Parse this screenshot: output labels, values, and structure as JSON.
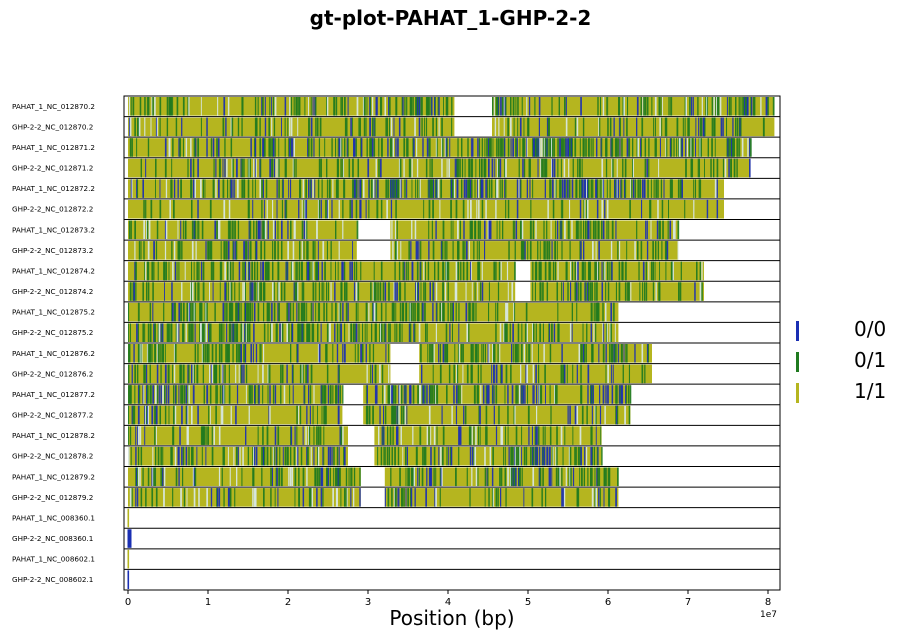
{
  "chart_data": {
    "type": "genotype-track",
    "title": "gt-plot-PAHAT_1-GHP-2-2",
    "xlabel": "Position (bp)",
    "x_offset_label": "1e7",
    "xlim": [
      -0.05,
      8.15
    ],
    "x_ticks": [
      {
        "value": 0,
        "label": "0"
      },
      {
        "value": 1,
        "label": "1"
      },
      {
        "value": 2,
        "label": "2"
      },
      {
        "value": 3,
        "label": "3"
      },
      {
        "value": 4,
        "label": "4"
      },
      {
        "value": 5,
        "label": "5"
      },
      {
        "value": 6,
        "label": "6"
      },
      {
        "value": 7,
        "label": "7"
      },
      {
        "value": 8,
        "label": "8"
      }
    ],
    "legend": [
      {
        "label": "0/0",
        "color": "#1a2fb3"
      },
      {
        "label": "0/1",
        "color": "#1f7a1f"
      },
      {
        "label": "1/1",
        "color": "#b5b51f"
      }
    ],
    "tracks": [
      {
        "label": "PAHAT_1_NC_012870.2",
        "end": 8.08,
        "gaps": [
          [
            4.08,
            4.55
          ]
        ],
        "seed": 11,
        "het": 0.3,
        "ref": 0.12
      },
      {
        "label": "GHP-2-2_NC_012870.2",
        "end": 8.08,
        "gaps": [
          [
            4.08,
            4.55
          ]
        ],
        "seed": 12,
        "het": 0.22,
        "ref": 0.08
      },
      {
        "label": "PAHAT_1_NC_012871.2",
        "end": 7.78,
        "gaps": [],
        "seed": 13,
        "het": 0.32,
        "ref": 0.2
      },
      {
        "label": "GHP-2-2_NC_012871.2",
        "end": 7.78,
        "gaps": [],
        "seed": 14,
        "het": 0.2,
        "ref": 0.08
      },
      {
        "label": "PAHAT_1_NC_012872.2",
        "end": 7.45,
        "gaps": [],
        "seed": 15,
        "het": 0.32,
        "ref": 0.16
      },
      {
        "label": "GHP-2-2_NC_012872.2",
        "end": 7.45,
        "gaps": [],
        "seed": 16,
        "het": 0.14,
        "ref": 0.06
      },
      {
        "label": "PAHAT_1_NC_012873.2",
        "end": 6.88,
        "gaps": [
          [
            2.86,
            3.28
          ]
        ],
        "seed": 17,
        "het": 0.24,
        "ref": 0.08
      },
      {
        "label": "GHP-2-2_NC_012873.2",
        "end": 6.88,
        "gaps": [
          [
            2.86,
            3.28
          ]
        ],
        "seed": 18,
        "het": 0.22,
        "ref": 0.08
      },
      {
        "label": "PAHAT_1_NC_012874.2",
        "end": 7.2,
        "gaps": [
          [
            4.84,
            5.03
          ]
        ],
        "seed": 19,
        "het": 0.36,
        "ref": 0.08
      },
      {
        "label": "GHP-2-2_NC_012874.2",
        "end": 7.2,
        "gaps": [
          [
            4.84,
            5.03
          ]
        ],
        "seed": 20,
        "het": 0.32,
        "ref": 0.08
      },
      {
        "label": "PAHAT_1_NC_012875.2",
        "end": 6.13,
        "gaps": [],
        "seed": 21,
        "het": 0.36,
        "ref": 0.06
      },
      {
        "label": "GHP-2-2_NC_012875.2",
        "end": 6.13,
        "gaps": [],
        "seed": 22,
        "het": 0.36,
        "ref": 0.08
      },
      {
        "label": "PAHAT_1_NC_012876.2",
        "end": 6.55,
        "gaps": [
          [
            3.28,
            3.64
          ]
        ],
        "seed": 23,
        "het": 0.32,
        "ref": 0.1
      },
      {
        "label": "GHP-2-2_NC_012876.2",
        "end": 6.55,
        "gaps": [
          [
            3.28,
            3.64
          ]
        ],
        "seed": 24,
        "het": 0.22,
        "ref": 0.06
      },
      {
        "label": "PAHAT_1_NC_012877.2",
        "end": 6.28,
        "gaps": [
          [
            2.68,
            2.94
          ]
        ],
        "seed": 25,
        "het": 0.3,
        "ref": 0.2
      },
      {
        "label": "GHP-2-2_NC_012877.2",
        "end": 6.28,
        "gaps": [
          [
            2.68,
            2.94
          ]
        ],
        "seed": 26,
        "het": 0.18,
        "ref": 0.08
      },
      {
        "label": "PAHAT_1_NC_012878.2",
        "end": 5.92,
        "gaps": [
          [
            2.75,
            3.08
          ]
        ],
        "seed": 27,
        "het": 0.22,
        "ref": 0.08
      },
      {
        "label": "GHP-2-2_NC_012878.2",
        "end": 5.92,
        "gaps": [
          [
            2.75,
            3.08
          ]
        ],
        "seed": 28,
        "het": 0.3,
        "ref": 0.12
      },
      {
        "label": "PAHAT_1_NC_012879.2",
        "end": 6.13,
        "gaps": [
          [
            2.91,
            3.21
          ]
        ],
        "seed": 29,
        "het": 0.3,
        "ref": 0.08
      },
      {
        "label": "GHP-2-2_NC_012879.2",
        "end": 6.13,
        "gaps": [
          [
            2.91,
            3.21
          ]
        ],
        "seed": 30,
        "het": 0.16,
        "ref": 0.08
      },
      {
        "label": "PAHAT_1_NC_008360.1",
        "end": 0.02,
        "gaps": [],
        "seed": 31,
        "het": 0.0,
        "ref": 0.0
      },
      {
        "label": "GHP-2-2_NC_008360.1",
        "end": 0.05,
        "gaps": [],
        "seed": 32,
        "het": 0.0,
        "ref": 1.0
      },
      {
        "label": "PAHAT_1_NC_008602.1",
        "end": 0.02,
        "gaps": [],
        "seed": 33,
        "het": 0.0,
        "ref": 0.0
      },
      {
        "label": "GHP-2-2_NC_008602.1",
        "end": 0.02,
        "gaps": [],
        "seed": 34,
        "het": 0.0,
        "ref": 1.0
      }
    ]
  }
}
